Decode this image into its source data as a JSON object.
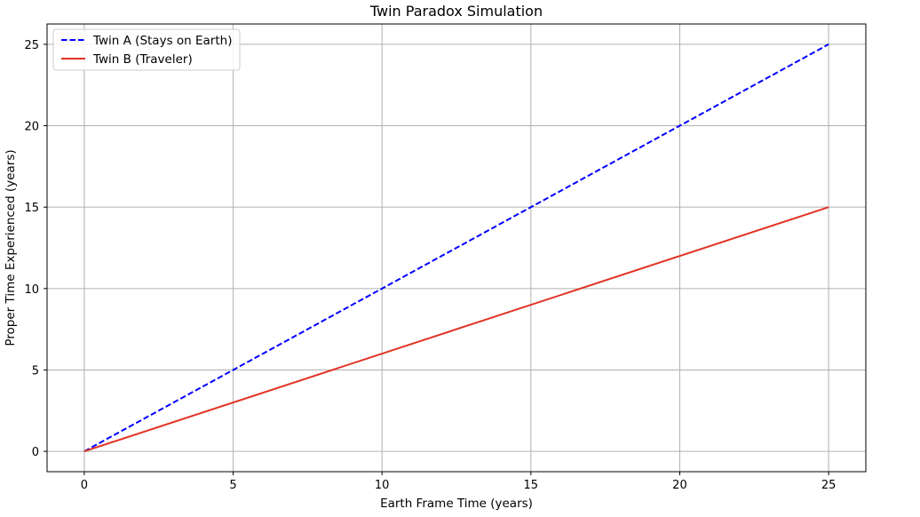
{
  "chart_data": {
    "type": "line",
    "title": "Twin Paradox Simulation",
    "xlabel": "Earth Frame Time (years)",
    "ylabel": "Proper Time Experienced (years)",
    "xlim": [
      -1.25,
      26.25
    ],
    "ylim": [
      -1.25,
      26.25
    ],
    "xticks": [
      0,
      5,
      10,
      15,
      20,
      25
    ],
    "yticks": [
      0,
      5,
      10,
      15,
      20,
      25
    ],
    "grid": true,
    "legend_position": "top-left",
    "series": [
      {
        "name": "Twin A (Stays on Earth)",
        "x": [
          0,
          25
        ],
        "y": [
          0,
          25
        ],
        "color": "#0000ff",
        "linestyle": "dashed"
      },
      {
        "name": "Twin B (Traveler)",
        "x": [
          0,
          25
        ],
        "y": [
          0,
          15
        ],
        "color": "#e03326",
        "linestyle": "solid"
      }
    ]
  }
}
